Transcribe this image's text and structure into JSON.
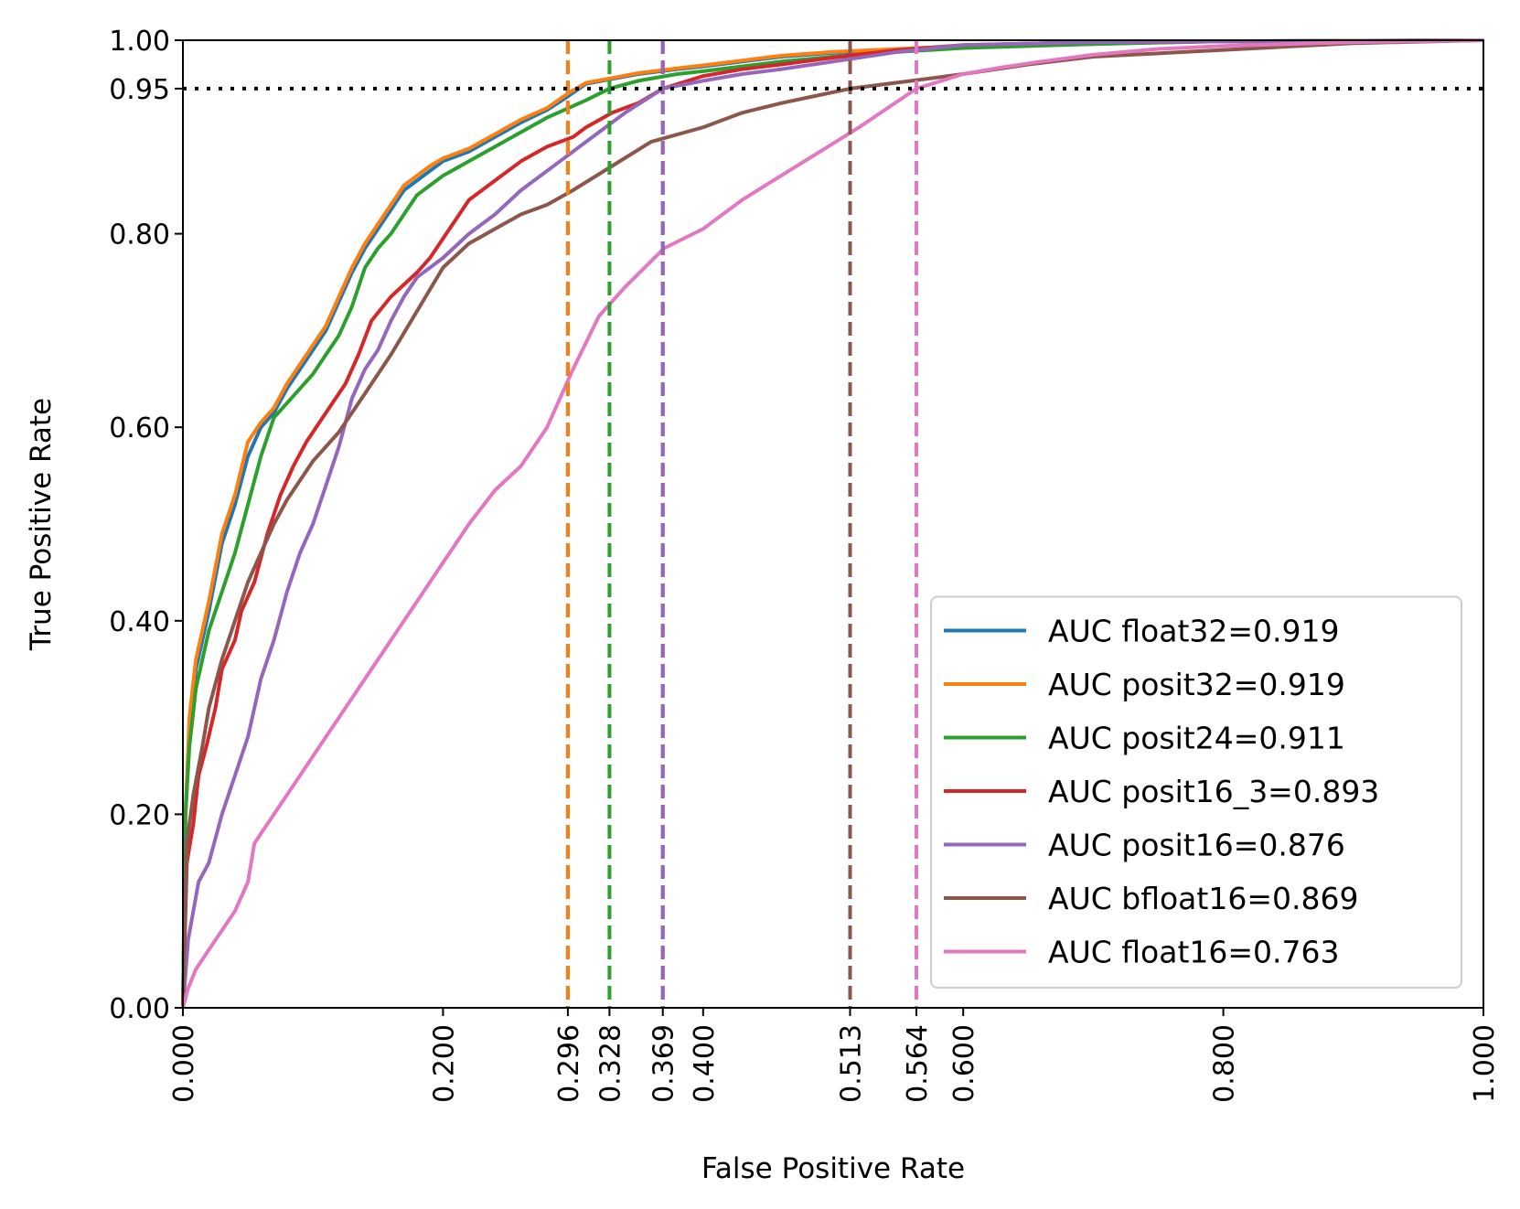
{
  "chart_data": {
    "type": "line",
    "title": "",
    "xlabel": "False Positive Rate",
    "ylabel": "True Positive Rate",
    "xlim": [
      0,
      1
    ],
    "ylim": [
      0,
      1
    ],
    "x_ticks": [
      "0.000",
      "0.200",
      "0.296",
      "0.328",
      "0.369",
      "0.400",
      "0.513",
      "0.564",
      "0.600",
      "0.800",
      "1.000"
    ],
    "y_ticks": [
      "0.00",
      "0.20",
      "0.40",
      "0.60",
      "0.80",
      "0.95",
      "1.00"
    ],
    "threshold_tpr": 0.95,
    "legend_position": "lower right",
    "series": [
      {
        "name": "AUC float32=0.919",
        "color": "#1f77b4",
        "threshold_fpr": 0.296,
        "points": [
          [
            0,
            0
          ],
          [
            0.002,
            0.2
          ],
          [
            0.005,
            0.28
          ],
          [
            0.01,
            0.35
          ],
          [
            0.015,
            0.38
          ],
          [
            0.02,
            0.41
          ],
          [
            0.03,
            0.48
          ],
          [
            0.04,
            0.52
          ],
          [
            0.05,
            0.57
          ],
          [
            0.06,
            0.6
          ],
          [
            0.07,
            0.615
          ],
          [
            0.08,
            0.64
          ],
          [
            0.09,
            0.66
          ],
          [
            0.1,
            0.68
          ],
          [
            0.11,
            0.7
          ],
          [
            0.12,
            0.73
          ],
          [
            0.13,
            0.76
          ],
          [
            0.14,
            0.785
          ],
          [
            0.15,
            0.805
          ],
          [
            0.16,
            0.825
          ],
          [
            0.17,
            0.845
          ],
          [
            0.18,
            0.855
          ],
          [
            0.19,
            0.865
          ],
          [
            0.2,
            0.875
          ],
          [
            0.22,
            0.885
          ],
          [
            0.24,
            0.9
          ],
          [
            0.26,
            0.915
          ],
          [
            0.28,
            0.928
          ],
          [
            0.296,
            0.942
          ],
          [
            0.31,
            0.955
          ],
          [
            0.33,
            0.96
          ],
          [
            0.35,
            0.965
          ],
          [
            0.38,
            0.97
          ],
          [
            0.4,
            0.973
          ],
          [
            0.43,
            0.978
          ],
          [
            0.46,
            0.983
          ],
          [
            0.5,
            0.987
          ],
          [
            0.55,
            0.99
          ],
          [
            0.6,
            0.993
          ],
          [
            0.7,
            0.997
          ],
          [
            0.8,
            0.999
          ],
          [
            1,
            1
          ]
        ]
      },
      {
        "name": "AUC posit32=0.919",
        "color": "#ff7f0e",
        "threshold_fpr": 0.296,
        "points": [
          [
            0,
            0
          ],
          [
            0.002,
            0.2
          ],
          [
            0.005,
            0.3
          ],
          [
            0.01,
            0.36
          ],
          [
            0.015,
            0.39
          ],
          [
            0.02,
            0.42
          ],
          [
            0.03,
            0.49
          ],
          [
            0.04,
            0.53
          ],
          [
            0.05,
            0.585
          ],
          [
            0.06,
            0.605
          ],
          [
            0.07,
            0.62
          ],
          [
            0.08,
            0.645
          ],
          [
            0.09,
            0.665
          ],
          [
            0.1,
            0.685
          ],
          [
            0.11,
            0.705
          ],
          [
            0.12,
            0.735
          ],
          [
            0.13,
            0.765
          ],
          [
            0.14,
            0.79
          ],
          [
            0.15,
            0.81
          ],
          [
            0.16,
            0.83
          ],
          [
            0.17,
            0.85
          ],
          [
            0.18,
            0.86
          ],
          [
            0.19,
            0.87
          ],
          [
            0.2,
            0.878
          ],
          [
            0.22,
            0.888
          ],
          [
            0.24,
            0.903
          ],
          [
            0.26,
            0.918
          ],
          [
            0.28,
            0.93
          ],
          [
            0.296,
            0.945
          ],
          [
            0.31,
            0.956
          ],
          [
            0.33,
            0.961
          ],
          [
            0.35,
            0.966
          ],
          [
            0.38,
            0.971
          ],
          [
            0.4,
            0.974
          ],
          [
            0.43,
            0.979
          ],
          [
            0.46,
            0.984
          ],
          [
            0.5,
            0.988
          ],
          [
            0.55,
            0.991
          ],
          [
            0.6,
            0.994
          ],
          [
            0.7,
            0.997
          ],
          [
            0.8,
            0.999
          ],
          [
            1,
            1
          ]
        ]
      },
      {
        "name": "AUC posit24=0.911",
        "color": "#2ca02c",
        "threshold_fpr": 0.328,
        "points": [
          [
            0,
            0
          ],
          [
            0.002,
            0.2
          ],
          [
            0.005,
            0.27
          ],
          [
            0.01,
            0.33
          ],
          [
            0.015,
            0.36
          ],
          [
            0.02,
            0.39
          ],
          [
            0.03,
            0.43
          ],
          [
            0.04,
            0.47
          ],
          [
            0.05,
            0.52
          ],
          [
            0.06,
            0.57
          ],
          [
            0.07,
            0.61
          ],
          [
            0.08,
            0.625
          ],
          [
            0.09,
            0.64
          ],
          [
            0.1,
            0.655
          ],
          [
            0.11,
            0.675
          ],
          [
            0.12,
            0.695
          ],
          [
            0.13,
            0.725
          ],
          [
            0.14,
            0.765
          ],
          [
            0.15,
            0.785
          ],
          [
            0.16,
            0.8
          ],
          [
            0.17,
            0.82
          ],
          [
            0.18,
            0.84
          ],
          [
            0.19,
            0.85
          ],
          [
            0.2,
            0.86
          ],
          [
            0.22,
            0.875
          ],
          [
            0.24,
            0.89
          ],
          [
            0.26,
            0.905
          ],
          [
            0.28,
            0.92
          ],
          [
            0.3,
            0.932
          ],
          [
            0.31,
            0.938
          ],
          [
            0.328,
            0.95
          ],
          [
            0.35,
            0.958
          ],
          [
            0.38,
            0.965
          ],
          [
            0.4,
            0.968
          ],
          [
            0.43,
            0.973
          ],
          [
            0.46,
            0.978
          ],
          [
            0.5,
            0.983
          ],
          [
            0.55,
            0.988
          ],
          [
            0.6,
            0.992
          ],
          [
            0.7,
            0.996
          ],
          [
            0.8,
            0.999
          ],
          [
            1,
            1
          ]
        ]
      },
      {
        "name": "AUC posit16_3=0.893",
        "color": "#d62728",
        "threshold_fpr": 0.369,
        "points": [
          [
            0,
            0
          ],
          [
            0.003,
            0.15
          ],
          [
            0.008,
            0.19
          ],
          [
            0.012,
            0.24
          ],
          [
            0.018,
            0.27
          ],
          [
            0.025,
            0.31
          ],
          [
            0.03,
            0.35
          ],
          [
            0.04,
            0.38
          ],
          [
            0.045,
            0.41
          ],
          [
            0.055,
            0.44
          ],
          [
            0.065,
            0.49
          ],
          [
            0.075,
            0.53
          ],
          [
            0.085,
            0.56
          ],
          [
            0.095,
            0.585
          ],
          [
            0.105,
            0.605
          ],
          [
            0.115,
            0.625
          ],
          [
            0.125,
            0.645
          ],
          [
            0.135,
            0.675
          ],
          [
            0.145,
            0.71
          ],
          [
            0.16,
            0.735
          ],
          [
            0.18,
            0.76
          ],
          [
            0.19,
            0.775
          ],
          [
            0.2,
            0.795
          ],
          [
            0.21,
            0.815
          ],
          [
            0.22,
            0.835
          ],
          [
            0.24,
            0.855
          ],
          [
            0.26,
            0.875
          ],
          [
            0.28,
            0.89
          ],
          [
            0.3,
            0.9
          ],
          [
            0.31,
            0.91
          ],
          [
            0.33,
            0.925
          ],
          [
            0.35,
            0.935
          ],
          [
            0.369,
            0.95
          ],
          [
            0.4,
            0.963
          ],
          [
            0.43,
            0.97
          ],
          [
            0.46,
            0.975
          ],
          [
            0.5,
            0.982
          ],
          [
            0.55,
            0.99
          ],
          [
            0.6,
            0.995
          ],
          [
            0.7,
            0.998
          ],
          [
            1,
            1
          ]
        ]
      },
      {
        "name": "AUC posit16=0.876",
        "color": "#9467bd",
        "threshold_fpr": 0.369,
        "points": [
          [
            0,
            0
          ],
          [
            0.004,
            0.07
          ],
          [
            0.008,
            0.1
          ],
          [
            0.012,
            0.13
          ],
          [
            0.02,
            0.15
          ],
          [
            0.03,
            0.2
          ],
          [
            0.04,
            0.24
          ],
          [
            0.05,
            0.28
          ],
          [
            0.06,
            0.34
          ],
          [
            0.07,
            0.38
          ],
          [
            0.08,
            0.43
          ],
          [
            0.09,
            0.47
          ],
          [
            0.1,
            0.5
          ],
          [
            0.11,
            0.54
          ],
          [
            0.12,
            0.58
          ],
          [
            0.13,
            0.63
          ],
          [
            0.14,
            0.66
          ],
          [
            0.15,
            0.68
          ],
          [
            0.16,
            0.71
          ],
          [
            0.17,
            0.735
          ],
          [
            0.18,
            0.755
          ],
          [
            0.2,
            0.775
          ],
          [
            0.22,
            0.8
          ],
          [
            0.24,
            0.82
          ],
          [
            0.26,
            0.845
          ],
          [
            0.28,
            0.865
          ],
          [
            0.3,
            0.885
          ],
          [
            0.32,
            0.905
          ],
          [
            0.34,
            0.925
          ],
          [
            0.369,
            0.95
          ],
          [
            0.4,
            0.958
          ],
          [
            0.43,
            0.965
          ],
          [
            0.46,
            0.97
          ],
          [
            0.5,
            0.978
          ],
          [
            0.55,
            0.988
          ],
          [
            0.6,
            0.995
          ],
          [
            0.7,
            0.998
          ],
          [
            1,
            1
          ]
        ]
      },
      {
        "name": "AUC bfloat16=0.869",
        "color": "#8c564b",
        "threshold_fpr": 0.513,
        "points": [
          [
            0,
            0
          ],
          [
            0.003,
            0.17
          ],
          [
            0.008,
            0.22
          ],
          [
            0.015,
            0.27
          ],
          [
            0.02,
            0.31
          ],
          [
            0.03,
            0.36
          ],
          [
            0.04,
            0.4
          ],
          [
            0.05,
            0.44
          ],
          [
            0.06,
            0.47
          ],
          [
            0.07,
            0.5
          ],
          [
            0.08,
            0.525
          ],
          [
            0.09,
            0.545
          ],
          [
            0.1,
            0.565
          ],
          [
            0.12,
            0.595
          ],
          [
            0.14,
            0.635
          ],
          [
            0.16,
            0.675
          ],
          [
            0.18,
            0.72
          ],
          [
            0.2,
            0.765
          ],
          [
            0.22,
            0.79
          ],
          [
            0.24,
            0.805
          ],
          [
            0.26,
            0.82
          ],
          [
            0.28,
            0.83
          ],
          [
            0.3,
            0.845
          ],
          [
            0.33,
            0.87
          ],
          [
            0.36,
            0.895
          ],
          [
            0.4,
            0.91
          ],
          [
            0.43,
            0.925
          ],
          [
            0.46,
            0.935
          ],
          [
            0.513,
            0.95
          ],
          [
            0.56,
            0.958
          ],
          [
            0.6,
            0.965
          ],
          [
            0.65,
            0.975
          ],
          [
            0.7,
            0.983
          ],
          [
            0.8,
            0.99
          ],
          [
            0.9,
            0.997
          ],
          [
            1,
            1
          ]
        ]
      },
      {
        "name": "AUC float16=0.763",
        "color": "#e377c2",
        "threshold_fpr": 0.564,
        "points": [
          [
            0,
            0
          ],
          [
            0.004,
            0.02
          ],
          [
            0.01,
            0.04
          ],
          [
            0.02,
            0.06
          ],
          [
            0.03,
            0.08
          ],
          [
            0.04,
            0.1
          ],
          [
            0.05,
            0.13
          ],
          [
            0.055,
            0.17
          ],
          [
            0.07,
            0.2
          ],
          [
            0.08,
            0.22
          ],
          [
            0.1,
            0.26
          ],
          [
            0.12,
            0.3
          ],
          [
            0.14,
            0.34
          ],
          [
            0.16,
            0.38
          ],
          [
            0.18,
            0.42
          ],
          [
            0.2,
            0.46
          ],
          [
            0.22,
            0.5
          ],
          [
            0.24,
            0.535
          ],
          [
            0.26,
            0.56
          ],
          [
            0.28,
            0.6
          ],
          [
            0.3,
            0.66
          ],
          [
            0.32,
            0.715
          ],
          [
            0.34,
            0.745
          ],
          [
            0.37,
            0.785
          ],
          [
            0.4,
            0.805
          ],
          [
            0.43,
            0.835
          ],
          [
            0.46,
            0.86
          ],
          [
            0.49,
            0.885
          ],
          [
            0.52,
            0.91
          ],
          [
            0.564,
            0.95
          ],
          [
            0.6,
            0.965
          ],
          [
            0.63,
            0.972
          ],
          [
            0.66,
            0.978
          ],
          [
            0.7,
            0.985
          ],
          [
            0.75,
            0.991
          ],
          [
            0.8,
            0.994
          ],
          [
            0.9,
            0.998
          ],
          [
            1,
            1
          ]
        ]
      }
    ]
  }
}
